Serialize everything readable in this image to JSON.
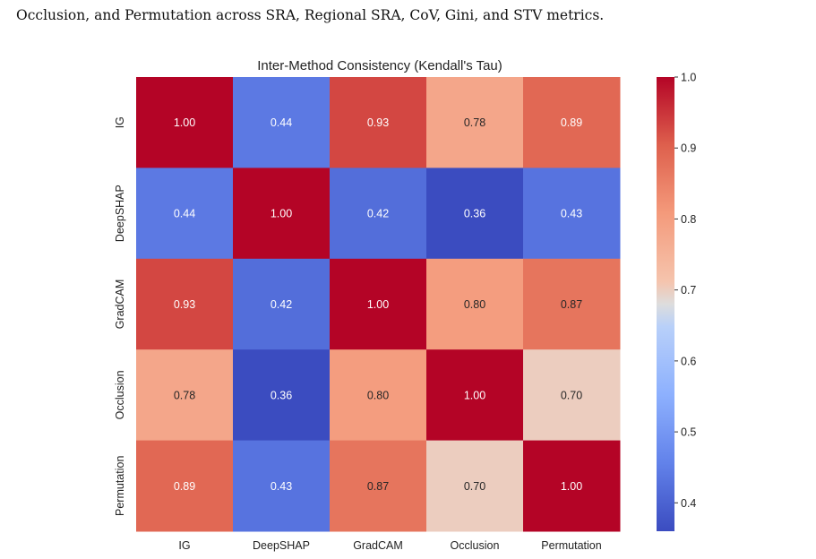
{
  "caption": "Occlusion, and Permutation across SRA, Regional SRA, CoV, Gini, and STV metrics.",
  "chart_data": {
    "type": "heatmap",
    "title": "Inter-Method Consistency (Kendall's Tau)",
    "xlabels": [
      "IG",
      "DeepSHAP",
      "GradCAM",
      "Occlusion",
      "Permutation"
    ],
    "ylabels": [
      "IG",
      "DeepSHAP",
      "GradCAM",
      "Occlusion",
      "Permutation"
    ],
    "values": [
      [
        1.0,
        0.44,
        0.93,
        0.78,
        0.89
      ],
      [
        0.44,
        1.0,
        0.42,
        0.36,
        0.43
      ],
      [
        0.93,
        0.42,
        1.0,
        0.8,
        0.87
      ],
      [
        0.78,
        0.36,
        0.8,
        1.0,
        0.7
      ],
      [
        0.89,
        0.43,
        0.87,
        0.7,
        1.0
      ]
    ],
    "value_format": "0.00",
    "colormap": "coolwarm",
    "vmin": 0.36,
    "vmax": 1.0,
    "colorbar_ticks": [
      1.0,
      0.9,
      0.8,
      0.7,
      0.6,
      0.5,
      0.4
    ],
    "colorbar_tick_labels": [
      "1.0",
      "0.9",
      "0.8",
      "0.7",
      "0.6",
      "0.5",
      "0.4"
    ]
  }
}
